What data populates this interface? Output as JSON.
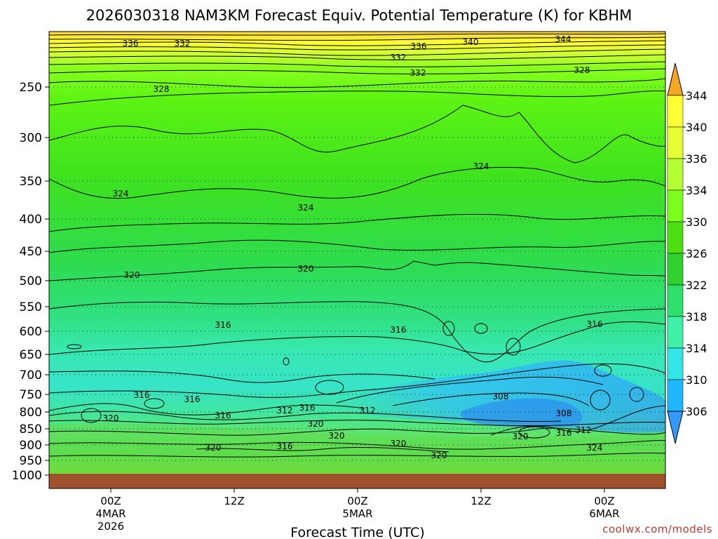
{
  "chart_data": {
    "type": "contour",
    "title": "2026030318 NAM3KM Forecast Equiv. Potential Temperature (K) for KBHM",
    "xlabel": "Forecast Time (UTC)",
    "credit": "coolwx.com/models",
    "y_levels": [
      "250",
      "300",
      "350",
      "400",
      "450",
      "500",
      "550",
      "600",
      "650",
      "700",
      "750",
      "800",
      "850",
      "900",
      "950",
      "1000"
    ],
    "x_ticks": [
      {
        "lines": [
          "00Z",
          "4MAR",
          "2026"
        ]
      },
      {
        "lines": [
          "12Z"
        ]
      },
      {
        "lines": [
          "00Z",
          "5MAR"
        ]
      },
      {
        "lines": [
          "12Z"
        ]
      },
      {
        "lines": [
          "00Z",
          "6MAR"
        ]
      }
    ],
    "colorbar": {
      "ticks": [
        "344",
        "340",
        "336",
        "334",
        "330",
        "326",
        "322",
        "318",
        "314",
        "310",
        "306"
      ],
      "colors": [
        "#f5a623",
        "#ffff33",
        "#e6ff33",
        "#b3ff33",
        "#7cff1a",
        "#4bdf12",
        "#2ed12e",
        "#2ee06a",
        "#3ff0a8",
        "#33e6e6",
        "#1fb8ff",
        "#3399ff"
      ]
    },
    "contour_labels": [
      {
        "text": "336"
      },
      {
        "text": "332"
      },
      {
        "text": "336"
      },
      {
        "text": "340"
      },
      {
        "text": "344"
      },
      {
        "text": "332"
      },
      {
        "text": "328"
      },
      {
        "text": "332"
      },
      {
        "text": "328"
      },
      {
        "text": "324"
      },
      {
        "text": "324"
      },
      {
        "text": "324"
      },
      {
        "text": "320"
      },
      {
        "text": "320"
      },
      {
        "text": "316"
      },
      {
        "text": "316"
      },
      {
        "text": "316"
      },
      {
        "text": "316"
      },
      {
        "text": "316"
      },
      {
        "text": "320"
      },
      {
        "text": "316"
      },
      {
        "text": "312"
      },
      {
        "text": "316"
      },
      {
        "text": "312"
      },
      {
        "text": "308"
      },
      {
        "text": "308"
      },
      {
        "text": "316"
      },
      {
        "text": "312"
      },
      {
        "text": "320"
      },
      {
        "text": "320"
      },
      {
        "text": "320"
      },
      {
        "text": "320"
      },
      {
        "text": "316"
      },
      {
        "text": "320"
      },
      {
        "text": "320"
      },
      {
        "text": "324"
      }
    ]
  }
}
